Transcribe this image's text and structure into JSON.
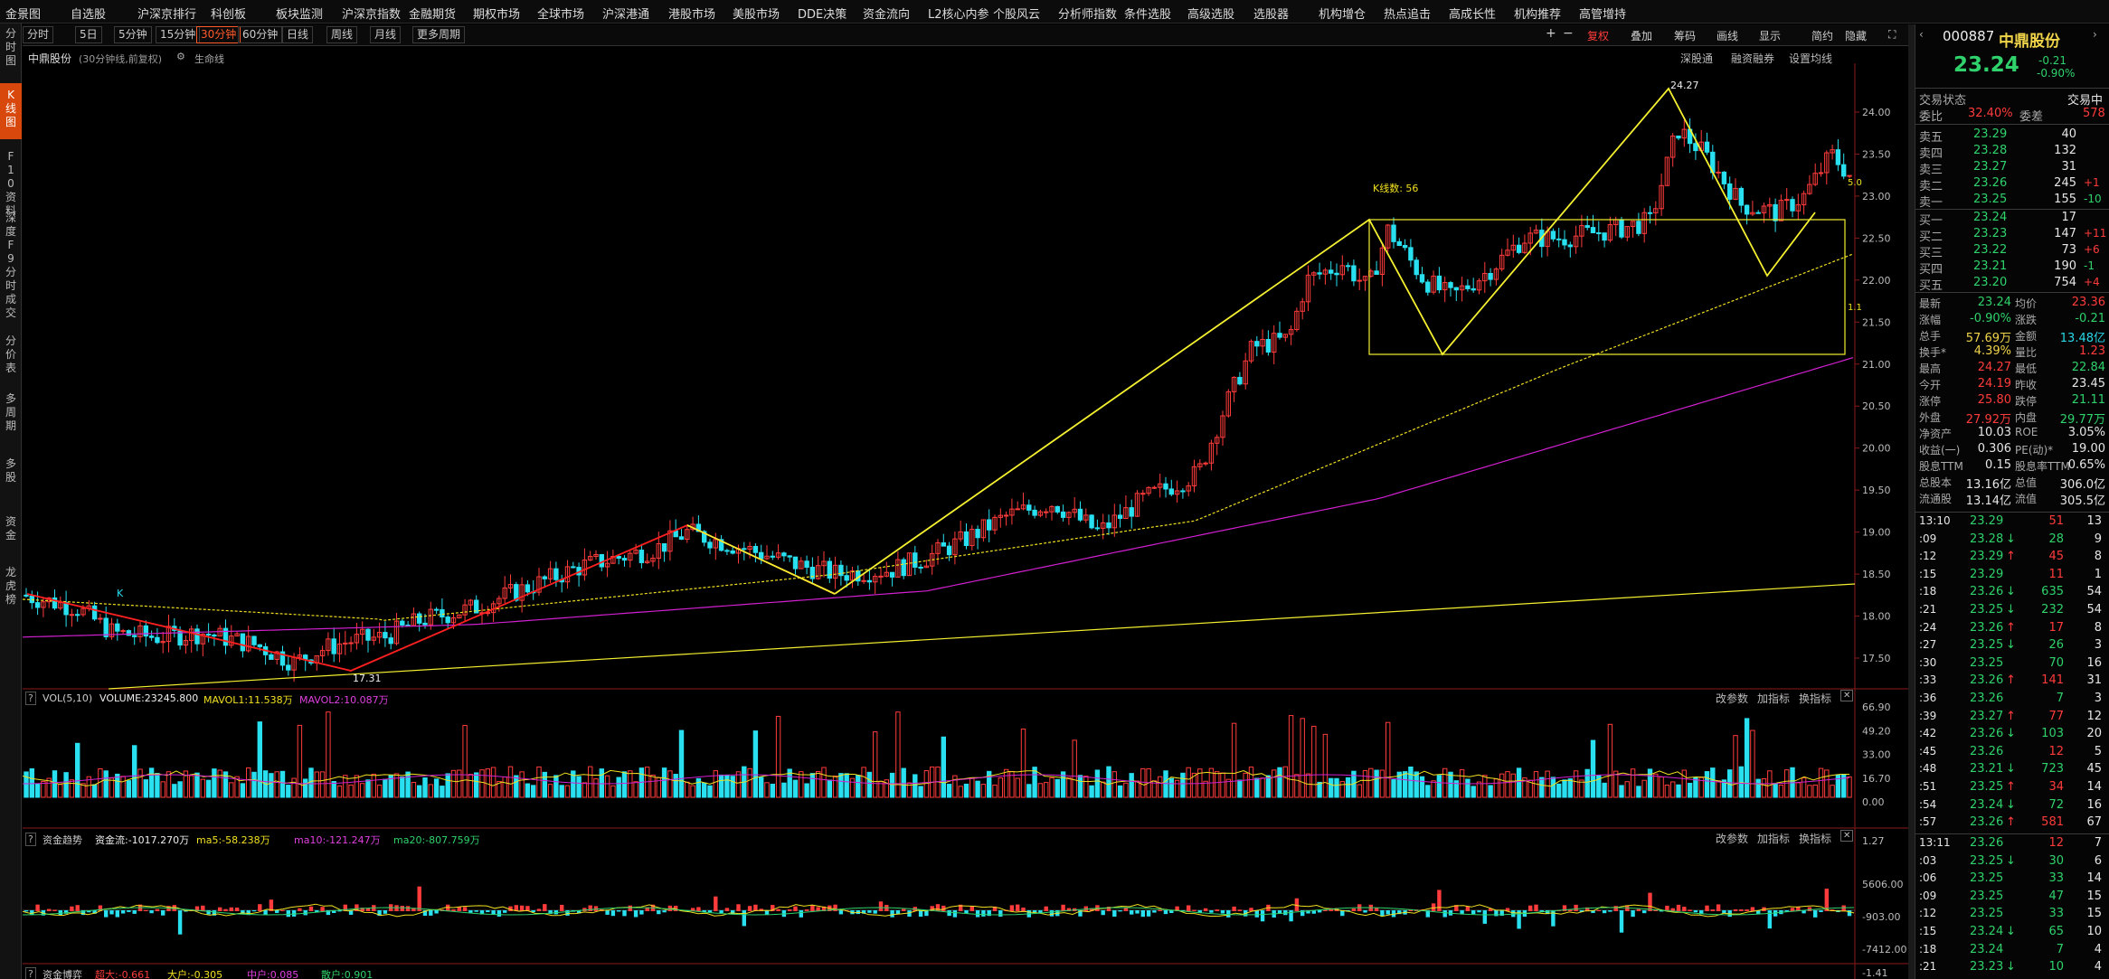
{
  "menu": {
    "items": [
      "金景图",
      "自选股",
      "沪深京排行",
      "科创板",
      "板块监测",
      "沪深京指数",
      "金融期货",
      "期权市场",
      "全球市场",
      "沪深港通",
      "港股市场",
      "美股市场",
      "DDE决策",
      "资金流向",
      "L2核心内参",
      "个股风云",
      "分析师指数",
      "条件选股",
      "高级选股",
      "选股器",
      "机构增仓",
      "热点追击",
      "高成长性",
      "机构推荐",
      "高管增持"
    ]
  },
  "lefttabs": [
    "分时图",
    "K线图",
    "F10资料",
    "深度F9",
    "分时成交",
    "分价表",
    "多周期",
    "多股",
    "资金",
    "龙虎榜"
  ],
  "periods": [
    "分时",
    "5日",
    "5分钟",
    "15分钟",
    "30分钟",
    "60分钟",
    "日线",
    "周线",
    "月线",
    "更多周期"
  ],
  "toolbar_right": [
    "+",
    "−",
    "复权",
    "叠加",
    "筹码",
    "画线",
    "显示",
    "简约",
    "隐藏"
  ],
  "chart": {
    "stock_label": "中鼎股份",
    "sub_label": "(30分钟线,前复权)",
    "life_line": "生命线",
    "links": [
      "深股通",
      "融资融券",
      "设置均线"
    ],
    "price_axis": [
      "24.00",
      "23.50",
      "23.00",
      "22.50",
      "22.00",
      "21.50",
      "21.00",
      "20.50",
      "20.00",
      "19.50",
      "19.00",
      "18.50",
      "18.00",
      "17.50"
    ],
    "high_label": "24.27",
    "low_label": "17.31",
    "box_label": "K线数: 56",
    "k_marker": "K",
    "val_right1": "5.0",
    "val_right2": "1.1",
    "vol_header": {
      "q": "?",
      "name": "VOL(5,10)",
      "volume": "VOLUME:23245.800",
      "mavol1": "MAVOL1:11.538万",
      "mavol2": "MAVOL2:10.087万"
    },
    "vol_axis": [
      "66.90",
      "49.20",
      "33.00",
      "16.70",
      "0.00"
    ],
    "fund_header": {
      "q": "?",
      "name": "资金趋势",
      "flow": "资金流:-1017.270万",
      "ma5": "ma5:-58.238万",
      "ma10": "ma10:-121.247万",
      "ma20": "ma20:-807.759万"
    },
    "fund_axis": [
      "1.27",
      "5606.00",
      "-903.00",
      "-7412.00",
      "-1.41"
    ],
    "panel_links": [
      "改参数",
      "加指标",
      "换指标"
    ],
    "bottom_header": {
      "name": "资金博弈",
      "a": "超大:-0.661",
      "b": "大户:-0.305",
      "c": "中户:0.085",
      "d": "散户:0.901"
    }
  },
  "quote": {
    "code": "000887",
    "name": "中鼎股份",
    "price": "23.24",
    "change": "-0.21",
    "pct": "-0.90%",
    "status_label": "交易状态",
    "status": "交易中",
    "weibi_label": "委比",
    "weibi": "32.40%",
    "weicha_label": "委差",
    "weicha": "578",
    "asks": [
      {
        "l": "卖五",
        "p": "23.29",
        "v": "40",
        "d": ""
      },
      {
        "l": "卖四",
        "p": "23.28",
        "v": "132",
        "d": ""
      },
      {
        "l": "卖三",
        "p": "23.27",
        "v": "31",
        "d": ""
      },
      {
        "l": "卖二",
        "p": "23.26",
        "v": "245",
        "d": "+1"
      },
      {
        "l": "卖一",
        "p": "23.25",
        "v": "155",
        "d": "-10"
      }
    ],
    "bids": [
      {
        "l": "买一",
        "p": "23.24",
        "v": "17",
        "d": ""
      },
      {
        "l": "买二",
        "p": "23.23",
        "v": "147",
        "d": "+11"
      },
      {
        "l": "买三",
        "p": "23.22",
        "v": "73",
        "d": "+6"
      },
      {
        "l": "买四",
        "p": "23.21",
        "v": "190",
        "d": "-1"
      },
      {
        "l": "买五",
        "p": "23.20",
        "v": "754",
        "d": "+4"
      }
    ],
    "stats": [
      {
        "l1": "最新",
        "v1": "23.24",
        "c1": "green",
        "l2": "均价",
        "v2": "23.36",
        "c2": "red"
      },
      {
        "l1": "涨幅",
        "v1": "-0.90%",
        "c1": "green",
        "l2": "涨跌",
        "v2": "-0.21",
        "c2": "green"
      },
      {
        "l1": "总手",
        "v1": "57.69万",
        "c1": "yellow",
        "l2": "金额",
        "v2": "13.48亿",
        "c2": "cyan"
      },
      {
        "l1": "换手*",
        "v1": "4.39%",
        "c1": "yellow",
        "l2": "量比",
        "v2": "1.23",
        "c2": "red"
      },
      {
        "l1": "最高",
        "v1": "24.27",
        "c1": "red",
        "l2": "最低",
        "v2": "22.84",
        "c2": "green"
      },
      {
        "l1": "今开",
        "v1": "24.19",
        "c1": "red",
        "l2": "昨收",
        "v2": "23.45",
        "c2": "white"
      },
      {
        "l1": "涨停",
        "v1": "25.80",
        "c1": "red",
        "l2": "跌停",
        "v2": "21.11",
        "c2": "green"
      },
      {
        "l1": "外盘",
        "v1": "27.92万",
        "c1": "red",
        "l2": "内盘",
        "v2": "29.77万",
        "c2": "green"
      },
      {
        "l1": "净资产",
        "v1": "10.03",
        "c1": "white",
        "l2": "ROE",
        "v2": "3.05%",
        "c2": "white"
      },
      {
        "l1": "收益(一)",
        "v1": "0.306",
        "c1": "white",
        "l2": "PE(动)*",
        "v2": "19.00",
        "c2": "white"
      },
      {
        "l1": "股息TTM",
        "v1": "0.15",
        "c1": "white",
        "l2": "股息率TTM",
        "v2": "0.65%",
        "c2": "white"
      },
      {
        "l1": "总股本",
        "v1": "13.16亿",
        "c1": "white",
        "l2": "总值",
        "v2": "306.0亿",
        "c2": "white"
      },
      {
        "l1": "流通股",
        "v1": "13.14亿",
        "c1": "white",
        "l2": "流值",
        "v2": "305.5亿",
        "c2": "white"
      }
    ],
    "ticks1": [
      {
        "t": "13:10",
        "p": "23.29",
        "a": "",
        "v": "51",
        "n": "13",
        "pc": "green",
        "vc": "red"
      },
      {
        "t": ":09",
        "p": "23.28",
        "a": "↓",
        "v": "28",
        "n": "9",
        "pc": "green",
        "vc": "green"
      },
      {
        "t": ":12",
        "p": "23.29",
        "a": "↑",
        "v": "45",
        "n": "8",
        "pc": "green",
        "vc": "red"
      },
      {
        "t": ":15",
        "p": "23.29",
        "a": "",
        "v": "11",
        "n": "1",
        "pc": "green",
        "vc": "red"
      },
      {
        "t": ":18",
        "p": "23.26",
        "a": "↓",
        "v": "635",
        "n": "54",
        "pc": "green",
        "vc": "green"
      },
      {
        "t": ":21",
        "p": "23.25",
        "a": "↓",
        "v": "232",
        "n": "54",
        "pc": "green",
        "vc": "green"
      },
      {
        "t": ":24",
        "p": "23.26",
        "a": "↑",
        "v": "17",
        "n": "8",
        "pc": "green",
        "vc": "red"
      },
      {
        "t": ":27",
        "p": "23.25",
        "a": "↓",
        "v": "26",
        "n": "3",
        "pc": "green",
        "vc": "green"
      },
      {
        "t": ":30",
        "p": "23.25",
        "a": "",
        "v": "70",
        "n": "16",
        "pc": "green",
        "vc": "green"
      },
      {
        "t": ":33",
        "p": "23.26",
        "a": "↑",
        "v": "141",
        "n": "31",
        "pc": "green",
        "vc": "red"
      },
      {
        "t": ":36",
        "p": "23.26",
        "a": "",
        "v": "7",
        "n": "3",
        "pc": "green",
        "vc": "green"
      },
      {
        "t": ":39",
        "p": "23.27",
        "a": "↑",
        "v": "77",
        "n": "12",
        "pc": "green",
        "vc": "red"
      },
      {
        "t": ":42",
        "p": "23.26",
        "a": "↓",
        "v": "103",
        "n": "20",
        "pc": "green",
        "vc": "green"
      },
      {
        "t": ":45",
        "p": "23.26",
        "a": "",
        "v": "12",
        "n": "5",
        "pc": "green",
        "vc": "red"
      },
      {
        "t": ":48",
        "p": "23.21",
        "a": "↓",
        "v": "723",
        "n": "45",
        "pc": "green",
        "vc": "green"
      },
      {
        "t": ":51",
        "p": "23.25",
        "a": "↑",
        "v": "34",
        "n": "14",
        "pc": "green",
        "vc": "red"
      },
      {
        "t": ":54",
        "p": "23.24",
        "a": "↓",
        "v": "72",
        "n": "16",
        "pc": "green",
        "vc": "green"
      },
      {
        "t": ":57",
        "p": "23.26",
        "a": "↑",
        "v": "581",
        "n": "67",
        "pc": "green",
        "vc": "red"
      }
    ],
    "ticks2": [
      {
        "t": "13:11",
        "p": "23.26",
        "a": "",
        "v": "12",
        "n": "7",
        "pc": "green",
        "vc": "red"
      },
      {
        "t": ":03",
        "p": "23.25",
        "a": "↓",
        "v": "30",
        "n": "6",
        "pc": "green",
        "vc": "green"
      },
      {
        "t": ":06",
        "p": "23.25",
        "a": "",
        "v": "33",
        "n": "14",
        "pc": "green",
        "vc": "green"
      },
      {
        "t": ":09",
        "p": "23.25",
        "a": "",
        "v": "47",
        "n": "15",
        "pc": "green",
        "vc": "green"
      },
      {
        "t": ":12",
        "p": "23.25",
        "a": "",
        "v": "33",
        "n": "15",
        "pc": "green",
        "vc": "green"
      },
      {
        "t": ":15",
        "p": "23.24",
        "a": "↓",
        "v": "65",
        "n": "10",
        "pc": "green",
        "vc": "green"
      },
      {
        "t": ":18",
        "p": "23.24",
        "a": "",
        "v": "7",
        "n": "4",
        "pc": "green",
        "vc": "green"
      },
      {
        "t": ":21",
        "p": "23.23",
        "a": "↓",
        "v": "10",
        "n": "4",
        "pc": "green",
        "vc": "green"
      }
    ]
  },
  "colors": {
    "up": "#ff3b3b",
    "down": "#28e0f0",
    "ma_yellow": "#f0e020",
    "ma_magenta": "#d020d0",
    "draw": "#f4f030",
    "accent": "#ff5a2a"
  }
}
